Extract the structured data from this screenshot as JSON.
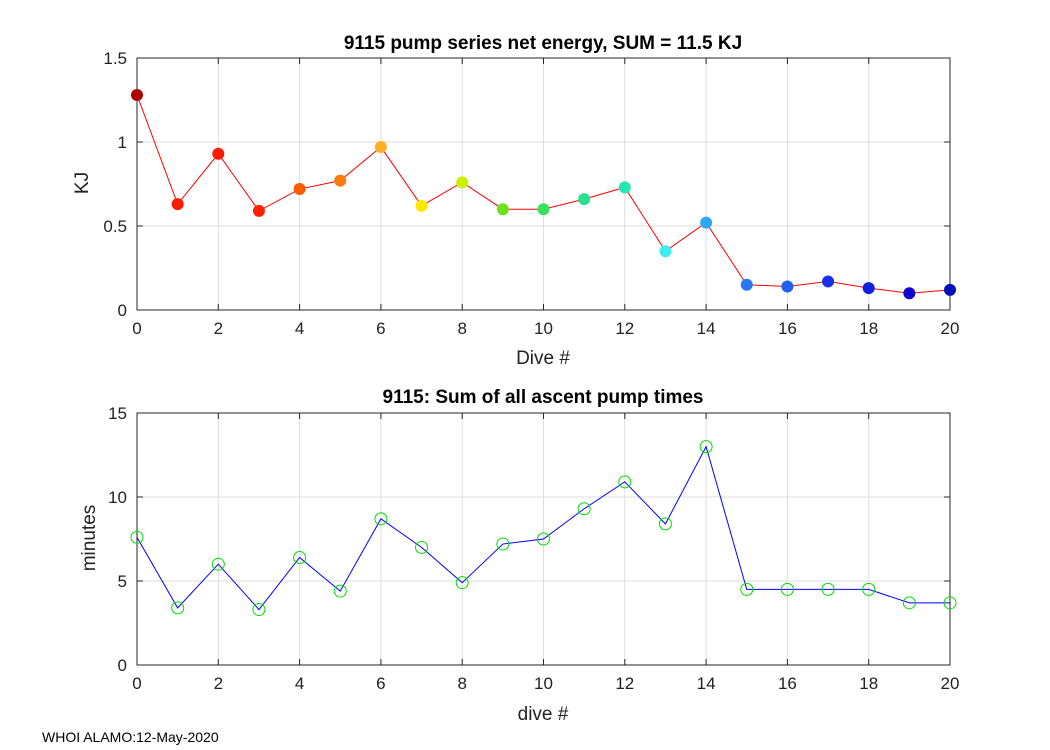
{
  "footer": "WHOI ALAMO:12-May-2020",
  "chart_data": [
    {
      "type": "line",
      "title": "9115 pump series net energy, SUM =  11.5 KJ",
      "xlabel": "Dive #",
      "ylabel": "KJ",
      "xlim": [
        0,
        20
      ],
      "ylim": [
        0,
        1.5
      ],
      "xticks": [
        "0",
        "2",
        "4",
        "6",
        "8",
        "10",
        "12",
        "14",
        "16",
        "18",
        "20"
      ],
      "yticks": [
        "0",
        "0.5",
        "1",
        "1.5"
      ],
      "grid": true,
      "line_color": "#ff0000",
      "marker": "filled-circle",
      "x": [
        0,
        1,
        2,
        3,
        4,
        5,
        6,
        7,
        8,
        9,
        10,
        11,
        12,
        13,
        14,
        15,
        16,
        17,
        18,
        19,
        20
      ],
      "y": [
        1.28,
        0.63,
        0.93,
        0.59,
        0.72,
        0.77,
        0.97,
        0.62,
        0.76,
        0.6,
        0.6,
        0.66,
        0.73,
        0.35,
        0.52,
        0.15,
        0.14,
        0.17,
        0.13,
        0.1,
        0.12
      ],
      "marker_colors": [
        "#b00000",
        "#ff1a00",
        "#ff1a00",
        "#ff2000",
        "#ff5a00",
        "#ff7a10",
        "#ffb020",
        "#ffe800",
        "#c8f000",
        "#6ee020",
        "#38e060",
        "#28e090",
        "#20e8b0",
        "#40ecf0",
        "#2ea8f0",
        "#2a78f0",
        "#2060f0",
        "#1830e8",
        "#1020e0",
        "#1000d0",
        "#0010b8"
      ]
    },
    {
      "type": "line",
      "title": "9115: Sum of all ascent pump times",
      "xlabel": "dive #",
      "ylabel": "minutes",
      "xlim": [
        0,
        20
      ],
      "ylim": [
        0,
        15
      ],
      "xticks": [
        "0",
        "2",
        "4",
        "6",
        "8",
        "10",
        "12",
        "14",
        "16",
        "18",
        "20"
      ],
      "yticks": [
        "0",
        "5",
        "10",
        "15"
      ],
      "grid": true,
      "line_color": "#0000ff",
      "marker": "open-circle",
      "marker_color": "#00dd00",
      "x": [
        0,
        1,
        2,
        3,
        4,
        5,
        6,
        7,
        8,
        9,
        10,
        11,
        12,
        13,
        14,
        15,
        16,
        17,
        18,
        19,
        20
      ],
      "y": [
        7.6,
        3.4,
        6.0,
        3.3,
        6.4,
        4.4,
        8.7,
        7.0,
        4.9,
        7.2,
        7.5,
        9.3,
        10.9,
        8.4,
        13.0,
        4.5,
        4.5,
        4.5,
        4.5,
        3.7,
        3.7
      ]
    }
  ]
}
